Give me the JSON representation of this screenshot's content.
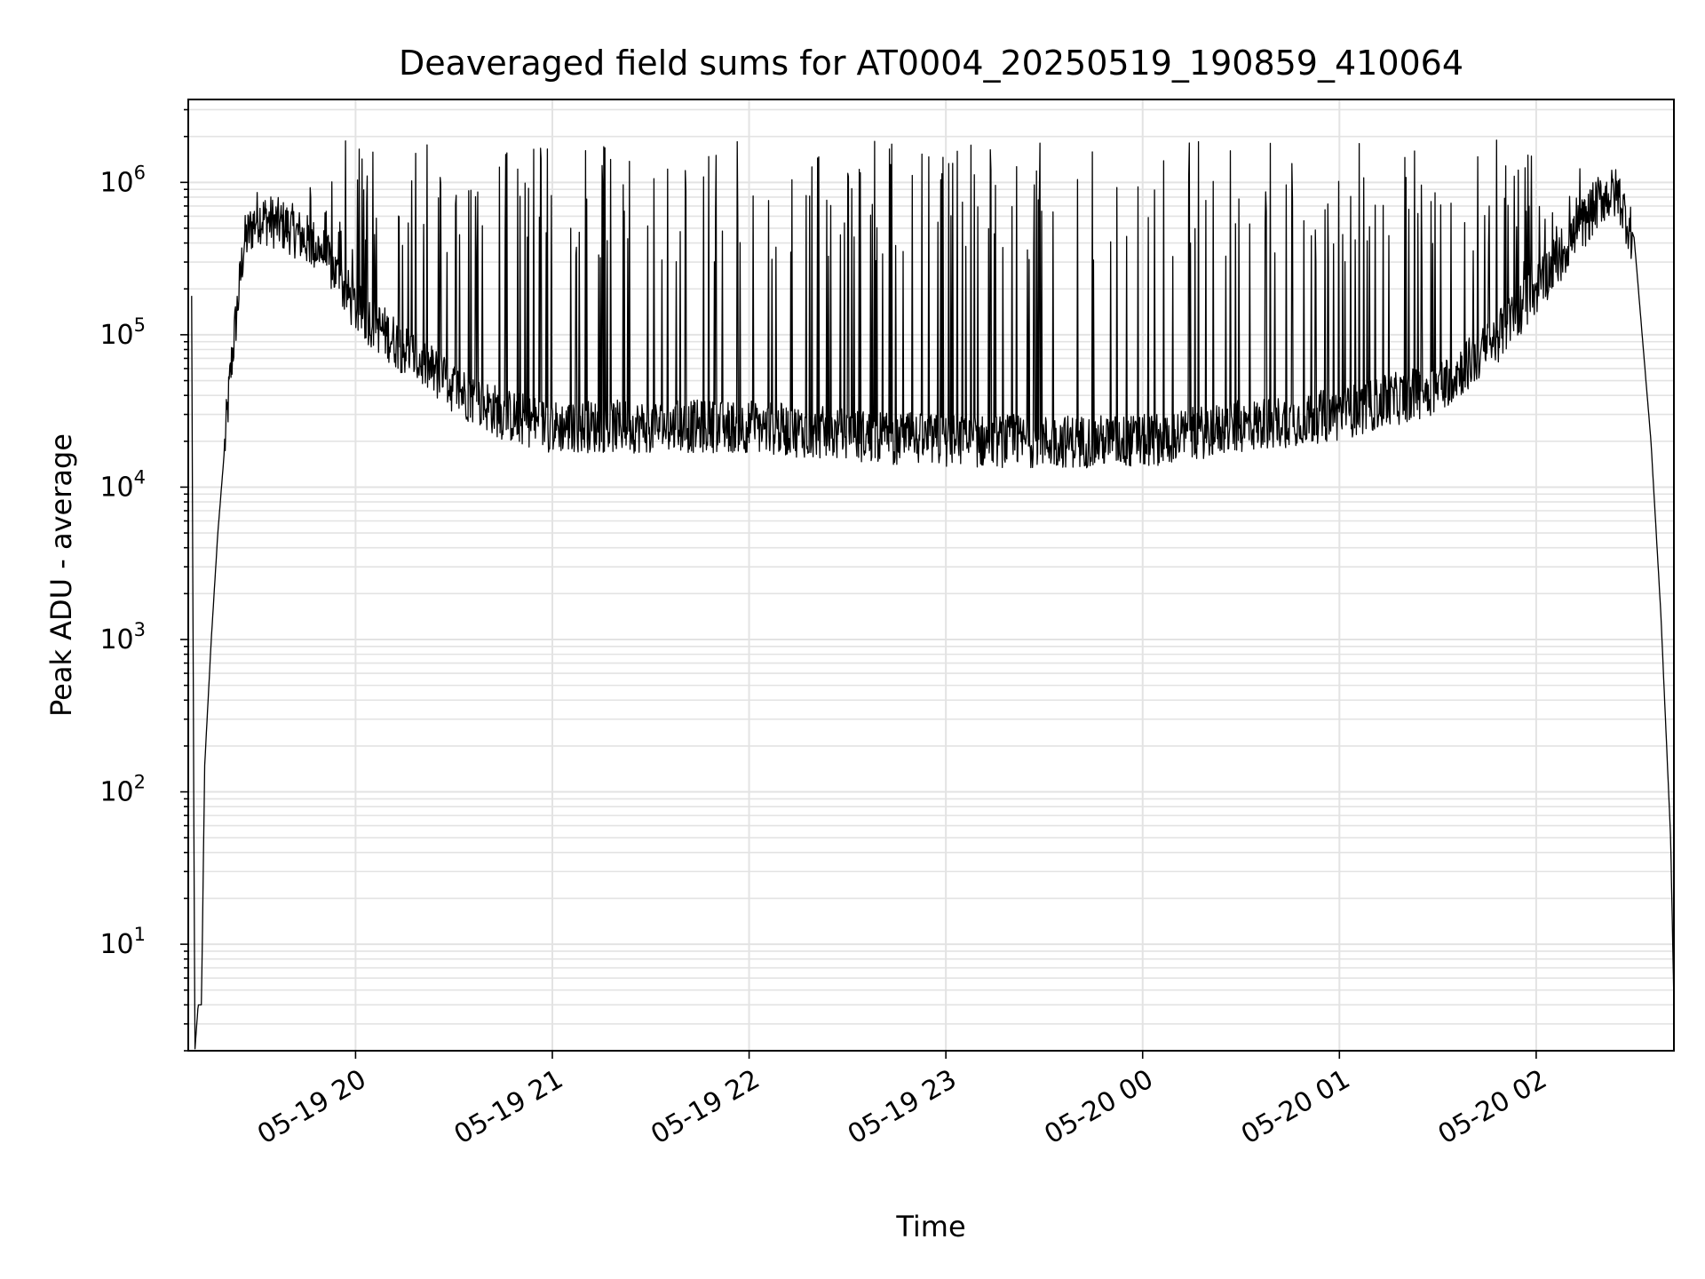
{
  "chart_data": {
    "type": "line",
    "title": "Deaveraged field sums for AT0004_20250519_190859_410064",
    "xlabel": "Time",
    "ylabel": "Peak ADU - average",
    "x_range": [
      "2025-05-19 19:08:59",
      "2025-05-20 02:42:00"
    ],
    "ylim": [
      2,
      3500000
    ],
    "yscale": "log",
    "x_ticks": [
      "05-19 20",
      "05-19 21",
      "05-19 22",
      "05-19 23",
      "05-20 00",
      "05-20 01",
      "05-20 02"
    ],
    "y_ticks": [
      {
        "value": 10,
        "exp": "1"
      },
      {
        "value": 100,
        "exp": "2"
      },
      {
        "value": 1000,
        "exp": "3"
      },
      {
        "value": 10000,
        "exp": "4"
      },
      {
        "value": 100000,
        "exp": "5"
      },
      {
        "value": 1000000,
        "exp": "6"
      }
    ],
    "grid": true,
    "series": [
      {
        "color": "#000000",
        "x": [
          "2025-05-19 19:10",
          "2025-05-19 19:11",
          "2025-05-19 19:12",
          "2025-05-19 19:13",
          "2025-05-19 19:14",
          "2025-05-19 19:16",
          "2025-05-19 19:18",
          "2025-05-19 19:22",
          "2025-05-19 19:26",
          "2025-05-19 19:30",
          "2025-05-19 19:40",
          "2025-05-19 19:50",
          "2025-05-19 20:00",
          "2025-05-19 20:15",
          "2025-05-19 20:30",
          "2025-05-19 20:45",
          "2025-05-19 21:00",
          "2025-05-19 21:30",
          "2025-05-19 22:00",
          "2025-05-19 22:30",
          "2025-05-19 23:00",
          "2025-05-19 23:30",
          "2025-05-20 00:00",
          "2025-05-20 00:30",
          "2025-05-20 01:00",
          "2025-05-20 01:30",
          "2025-05-20 01:45",
          "2025-05-20 02:00",
          "2025-05-20 02:10",
          "2025-05-20 02:20",
          "2025-05-20 02:25",
          "2025-05-20 02:30",
          "2025-05-20 02:35",
          "2025-05-20 02:38",
          "2025-05-20 02:41",
          "2025-05-20 02:42"
        ],
        "y": [
          180000,
          2,
          4,
          4,
          150,
          1000,
          5000,
          60000,
          400000,
          600000,
          500000,
          350000,
          150000,
          80000,
          45000,
          30000,
          25000,
          25000,
          25000,
          22000,
          20000,
          20000,
          20000,
          25000,
          30000,
          45000,
          80000,
          200000,
          400000,
          800000,
          850000,
          400000,
          20000,
          1500,
          50,
          4
        ]
      }
    ],
    "spikes": {
      "start": "2025-05-19 19:45",
      "end": "2025-05-20 02:15",
      "peak_range": [
        300000,
        1900000
      ]
    }
  }
}
